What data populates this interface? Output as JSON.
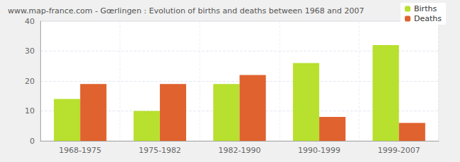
{
  "chart_data": {
    "type": "bar",
    "title": "www.map-france.com - Gœrlingen : Evolution of births and deaths between 1968 and 2007",
    "categories": [
      "1968-1975",
      "1975-1982",
      "1982-1990",
      "1990-1999",
      "1999-2007"
    ],
    "series": [
      {
        "name": "Births",
        "color": "#b8e02e",
        "values": [
          14,
          10,
          19,
          26,
          32
        ]
      },
      {
        "name": "Deaths",
        "color": "#e0622e",
        "values": [
          19,
          19,
          22,
          8,
          6
        ]
      }
    ],
    "ylim": [
      0,
      40
    ],
    "yticks": [
      0,
      10,
      20,
      30,
      40
    ],
    "grid": true,
    "legend": "upper right"
  }
}
